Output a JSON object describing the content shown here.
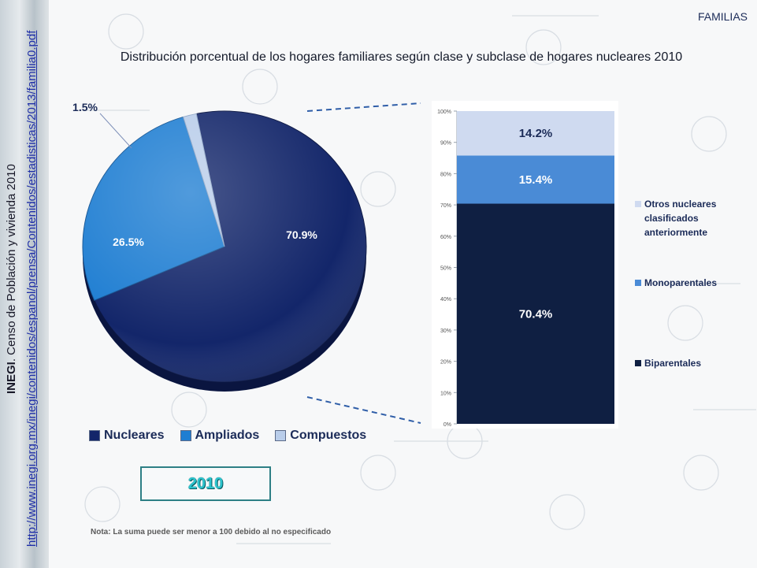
{
  "sidebar": {
    "source_name": "INEGI",
    "source_text": ". Censo de Población y vivienda 2010",
    "url": "http://www.inegi.org.mx/inegi/contenidos/espanol/prensa/Contenidos/estadisticas/2013/familia0.pdf"
  },
  "section_tag": "FAMILIAS",
  "year_label": "2010",
  "note": "Nota: La suma puede ser menor a 100 debido al no especificado",
  "colors": {
    "nucleares": "#13266a",
    "ampliados": "#1f7ed2",
    "compuestos": "#b9cdea",
    "biparentales": "#0f1f42",
    "monoparentales": "#4a8bd6",
    "otros": "#cfdaf0"
  },
  "chart_data": [
    {
      "type": "pie",
      "title": "Distribución porcentual de los hogares familiares según clase y subclase de hogares nucleares 2010",
      "categories": [
        "Nucleares",
        "Ampliados",
        "Compuestos"
      ],
      "values": [
        70.9,
        26.5,
        1.5
      ],
      "labels": [
        "70.9%",
        "26.5%",
        "1.5%"
      ],
      "legend": "bottom"
    },
    {
      "type": "bar",
      "stacked": true,
      "categories": [
        "Nucleares"
      ],
      "series": [
        {
          "name": "Biparentales",
          "values": [
            70.4
          ],
          "label": "70.4%"
        },
        {
          "name": "Monoparentales",
          "values": [
            15.4
          ],
          "label": "15.4%"
        },
        {
          "name": "Otros nucleares clasificados anteriormente",
          "values": [
            14.2
          ],
          "label": "14.2%"
        }
      ],
      "ylim": [
        0,
        100
      ],
      "yticks": [
        "0%",
        "10%",
        "20%",
        "30%",
        "40%",
        "50%",
        "60%",
        "70%",
        "80%",
        "90%",
        "100%"
      ],
      "legend": "right"
    }
  ],
  "legend_bar": {
    "otros_lines": [
      "Otros nucleares",
      "clasificados",
      "anteriormente"
    ]
  }
}
